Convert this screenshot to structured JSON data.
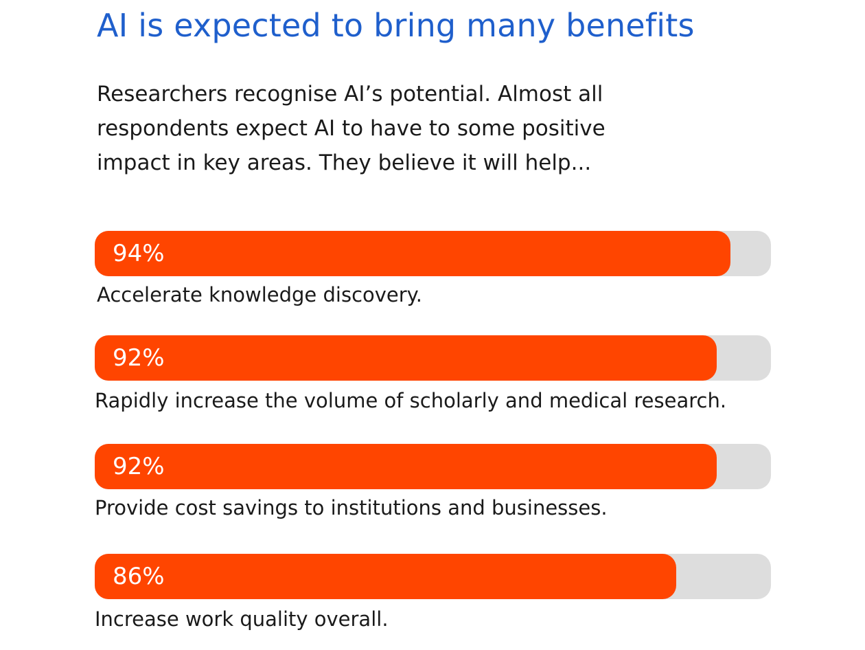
{
  "header": {
    "title": "AI is expected to bring many benefits",
    "intro": "Researchers recognise AI’s potential. Almost all respondents expect AI to have to some positive impact in key areas. They believe it will help..."
  },
  "colors": {
    "title": "#1f5fcc",
    "bar_fill": "#ff4500",
    "bar_track": "#dddddd"
  },
  "chart_data": {
    "type": "bar",
    "orientation": "horizontal",
    "title": "AI is expected to bring many benefits",
    "xlim": [
      0,
      100
    ],
    "categories": [
      "Accelerate knowledge discovery.",
      "Rapidly increase the volume of scholarly and medical research.",
      "Provide cost savings to institutions and businesses.",
      "Increase work quality overall."
    ],
    "values": [
      94,
      92,
      92,
      86
    ],
    "value_labels": [
      "94%",
      "92%",
      "92%",
      "86%"
    ]
  }
}
